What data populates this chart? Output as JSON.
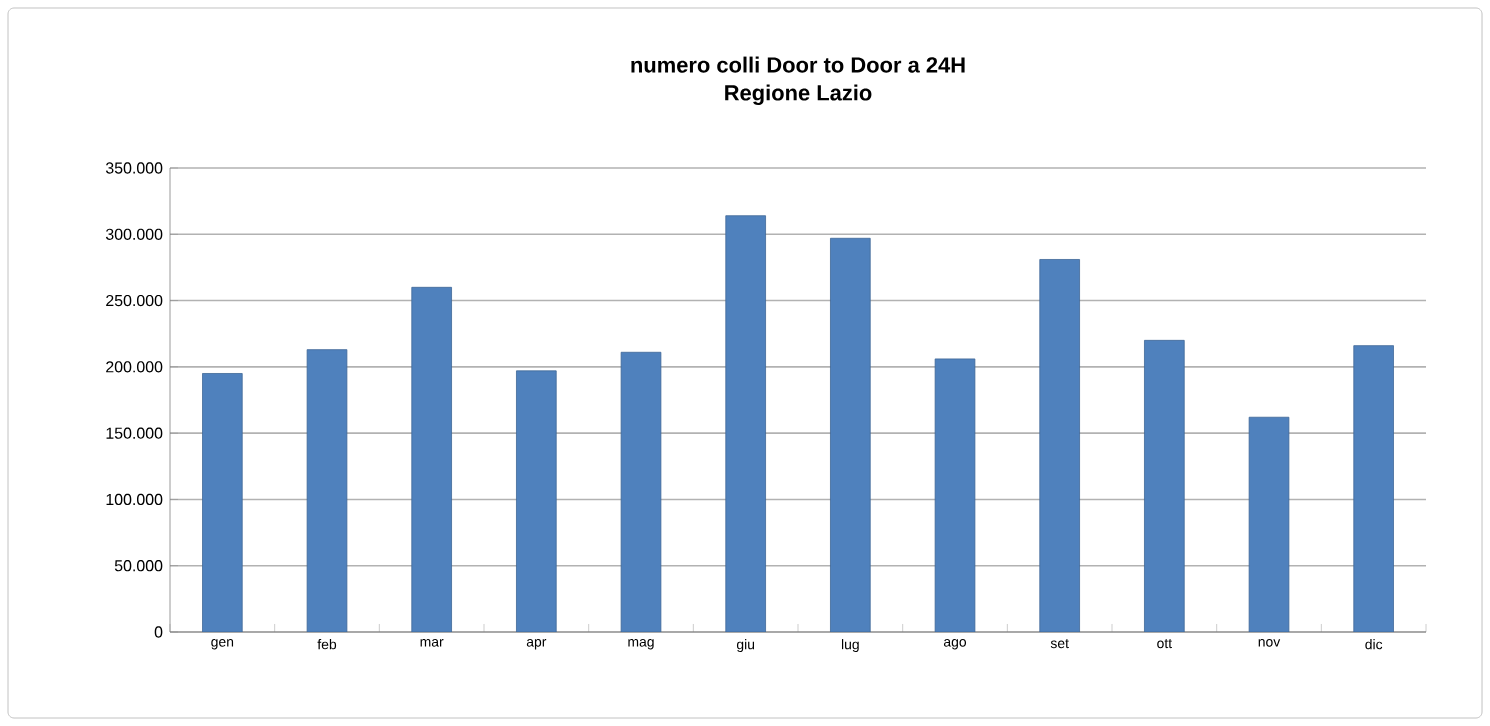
{
  "chart_data": {
    "type": "bar",
    "title": "numero colli Door to Door a 24H",
    "subtitle": "Regione Lazio",
    "categories": [
      "gen",
      "feb",
      "mar",
      "apr",
      "mag",
      "giu",
      "lug",
      "ago",
      "set",
      "ott",
      "nov",
      "dic"
    ],
    "values": [
      195000,
      213000,
      260000,
      197000,
      211000,
      314000,
      297000,
      206000,
      281000,
      220000,
      162000,
      216000
    ],
    "color": "#4f81bd",
    "ylim": [
      0,
      350000
    ],
    "yticks": [
      0,
      {
        "value": 50000,
        "label": "50.000"
      },
      {
        "value": 100000,
        "label": "100.000"
      },
      {
        "value": 150000,
        "label": "150.000"
      },
      {
        "value": 200000,
        "label": "200.000"
      },
      {
        "value": 250000,
        "label": "250.000"
      },
      {
        "value": 300000,
        "label": "300.000"
      },
      {
        "value": 350000,
        "label": "350.000"
      }
    ],
    "grid": "y"
  }
}
